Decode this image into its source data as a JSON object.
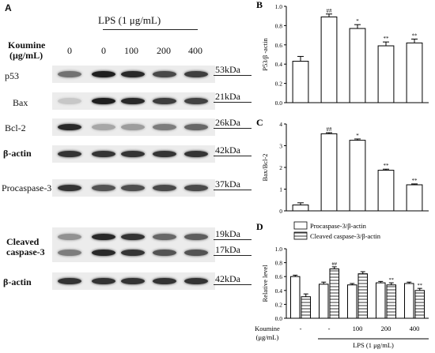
{
  "panel_a": {
    "letter": "A",
    "lps_label": "LPS (1 μg/mL)",
    "koumine_label_1": "Koumine",
    "koumine_label_2": "(μg/mL)",
    "doses": [
      "0",
      "0",
      "100",
      "200",
      "400"
    ],
    "rows": [
      {
        "label": "p53",
        "kda": "53kDa",
        "intensity": [
          0.55,
          0.95,
          0.9,
          0.75,
          0.8
        ]
      },
      {
        "label": "Bax",
        "kda": "21kDa",
        "intensity": [
          0.15,
          0.95,
          0.9,
          0.8,
          0.78
        ]
      },
      {
        "label": "Bcl-2",
        "kda": "26kDa",
        "intensity": [
          0.9,
          0.3,
          0.35,
          0.5,
          0.6
        ]
      },
      {
        "label": "β-actin",
        "kda": "42kDa",
        "intensity": [
          0.85,
          0.85,
          0.85,
          0.85,
          0.85
        ]
      },
      {
        "label": "Procaspase-3",
        "kda": "37kDa",
        "intensity": [
          0.85,
          0.7,
          0.72,
          0.75,
          0.75
        ]
      },
      {
        "label": "Cleaved",
        "label2": "caspase-3",
        "kda": "19kDa",
        "kda2": "17kDa",
        "intensity": [
          0.4,
          0.9,
          0.85,
          0.6,
          0.65
        ],
        "intensity2": [
          0.5,
          0.9,
          0.85,
          0.7,
          0.7
        ]
      },
      {
        "label": "β-actin",
        "kda": "42kDa",
        "intensity": [
          0.85,
          0.85,
          0.85,
          0.85,
          0.85
        ]
      }
    ]
  },
  "chart_data": [
    {
      "type": "bar",
      "letter": "B",
      "ylabel": "P53/β -actin",
      "ylim": [
        0,
        1.0
      ],
      "yticks": [
        "0.0",
        "0.2",
        "0.4",
        "0.6",
        "0.8",
        "1.0"
      ],
      "values": [
        0.43,
        0.89,
        0.77,
        0.59,
        0.62
      ],
      "errors": [
        0.05,
        0.03,
        0.04,
        0.04,
        0.04
      ],
      "annotations": [
        "",
        "##",
        "*",
        "**",
        "**"
      ]
    },
    {
      "type": "bar",
      "letter": "C",
      "ylabel": "Bax/Bcl-2",
      "ylim": [
        0,
        4
      ],
      "yticks": [
        "0",
        "1",
        "2",
        "3",
        "4"
      ],
      "values": [
        0.27,
        3.55,
        3.25,
        1.87,
        1.2
      ],
      "errors": [
        0.1,
        0.05,
        0.06,
        0.05,
        0.04
      ],
      "annotations": [
        "",
        "##",
        "*",
        "**",
        "**"
      ]
    },
    {
      "type": "bar",
      "letter": "D",
      "ylabel": "Relative level",
      "ylim": [
        0,
        1.0
      ],
      "yticks": [
        "0.0",
        "0.2",
        "0.4",
        "0.6",
        "0.8",
        "1.0"
      ],
      "series": [
        {
          "name": "Procaspase-3/β-actin",
          "values": [
            0.6,
            0.49,
            0.48,
            0.51,
            0.5
          ],
          "errors": [
            0.02,
            0.03,
            0.02,
            0.02,
            0.02
          ],
          "annotations": [
            "",
            "",
            "",
            "",
            ""
          ]
        },
        {
          "name": "Cleaved caspase-3/β-actin",
          "values": [
            0.31,
            0.71,
            0.64,
            0.48,
            0.4
          ],
          "errors": [
            0.04,
            0.03,
            0.03,
            0.03,
            0.03
          ],
          "annotations": [
            "",
            "##",
            "",
            "**",
            "**"
          ]
        }
      ],
      "x_label_title_1": "Koumine",
      "x_label_title_2": "(μg/mL)",
      "x_doses": [
        "-",
        "-",
        "100",
        "200",
        "400"
      ],
      "lps_label": "LPS (1 μg/mL)"
    }
  ]
}
